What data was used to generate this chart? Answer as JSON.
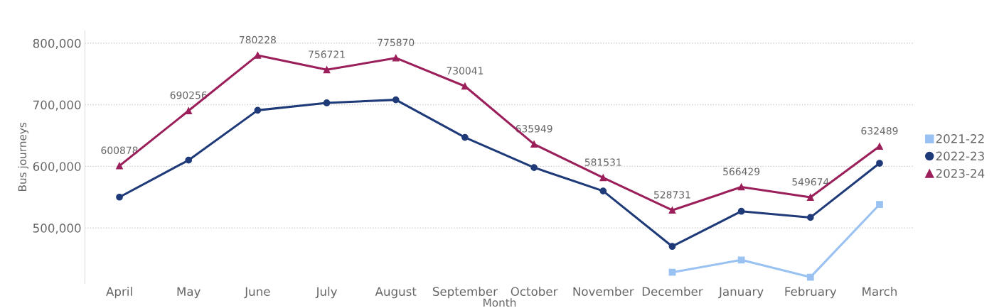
{
  "chart_data": {
    "type": "line",
    "xlabel": "Month",
    "ylabel": "Bus journeys",
    "categories": [
      "April",
      "May",
      "June",
      "July",
      "August",
      "September",
      "October",
      "November",
      "December",
      "January",
      "February",
      "March"
    ],
    "series": [
      {
        "name": "2021-22",
        "color": "#99c2f2",
        "marker": "square",
        "values": [
          null,
          null,
          null,
          null,
          null,
          null,
          null,
          null,
          428000,
          448000,
          420000,
          538000
        ]
      },
      {
        "name": "2022-23",
        "color": "#1f3a78",
        "marker": "circle",
        "values": [
          550000,
          610000,
          691000,
          703000,
          708000,
          647000,
          598000,
          560000,
          470000,
          527000,
          517000,
          605000
        ]
      },
      {
        "name": "2023-24",
        "color": "#9b1f5a",
        "marker": "triangle",
        "values": [
          600878,
          690256,
          780228,
          756721,
          775870,
          730041,
          635949,
          581531,
          528731,
          566429,
          549674,
          632489
        ],
        "value_labels": [
          "600878",
          "690256",
          "780228",
          "756721",
          "775870",
          "730041",
          "635949",
          "581531",
          "528731",
          "566429",
          "549674",
          "632489"
        ]
      }
    ],
    "ylim": [
      410000,
      820000
    ],
    "yticks": [
      {
        "value": 500000,
        "label": "500,000"
      },
      {
        "value": 600000,
        "label": "600,000"
      },
      {
        "value": 700000,
        "label": "700,000"
      },
      {
        "value": 800000,
        "label": "800,000"
      }
    ],
    "grid": "y",
    "legend": "right",
    "line_style": "solid"
  }
}
